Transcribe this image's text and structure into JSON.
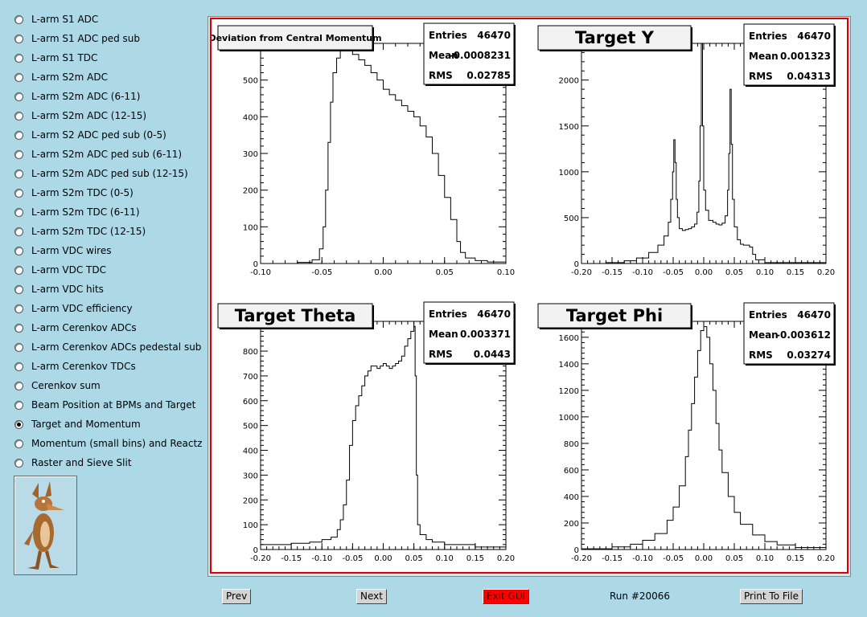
{
  "sidebar": {
    "items": [
      {
        "label": "L-arm S1 ADC",
        "checked": false
      },
      {
        "label": "L-arm S1 ADC ped sub",
        "checked": false
      },
      {
        "label": "L-arm S1 TDC",
        "checked": false
      },
      {
        "label": "L-arm S2m ADC",
        "checked": false
      },
      {
        "label": "L-arm S2m ADC (6-11)",
        "checked": false
      },
      {
        "label": "L-arm S2m ADC (12-15)",
        "checked": false
      },
      {
        "label": "L-arm S2 ADC ped sub (0-5)",
        "checked": false
      },
      {
        "label": "L-arm S2m ADC ped sub (6-11)",
        "checked": false
      },
      {
        "label": "L-arm S2m ADC ped sub (12-15)",
        "checked": false
      },
      {
        "label": "L-arm S2m TDC (0-5)",
        "checked": false
      },
      {
        "label": "L-arm S2m TDC (6-11)",
        "checked": false
      },
      {
        "label": "L-arm S2m TDC (12-15)",
        "checked": false
      },
      {
        "label": "L-arm VDC wires",
        "checked": false
      },
      {
        "label": "L-arm VDC TDC",
        "checked": false
      },
      {
        "label": "L-arm VDC hits",
        "checked": false
      },
      {
        "label": "L-arm VDC efficiency",
        "checked": false
      },
      {
        "label": "L-arm Cerenkov ADCs",
        "checked": false
      },
      {
        "label": "L-arm Cerenkov ADCs pedestal sub",
        "checked": false
      },
      {
        "label": "L-arm Cerenkov TDCs",
        "checked": false
      },
      {
        "label": "Cerenkov sum",
        "checked": false
      },
      {
        "label": "Beam Position at BPMs and Target",
        "checked": false
      },
      {
        "label": "Target and Momentum",
        "checked": true
      },
      {
        "label": "Momentum (small bins) and Reactz",
        "checked": false
      },
      {
        "label": "Raster and Sieve Slit",
        "checked": false
      }
    ]
  },
  "buttons": {
    "prev": "Prev",
    "next": "Next",
    "exit": "Exit GUI",
    "print": "Print To File"
  },
  "run_label": "Run #20066",
  "colors": {
    "background": "#add8e6",
    "canvas_border": "#dd0000",
    "exit_button": "#ff0000"
  },
  "chart_data": [
    {
      "type": "histogram",
      "title": "Deviation from Central Momentum",
      "stats": {
        "Entries": "46470",
        "Mean": "-0.0008231",
        "RMS": "0.02785"
      },
      "xlim": [
        -0.1,
        0.1
      ],
      "ylim": [
        0,
        600
      ],
      "xticks": [
        "-0.10",
        "-0.05",
        "0.00",
        "0.05",
        "0.10"
      ],
      "yticks": [
        "0",
        "100",
        "200",
        "300",
        "400",
        "500",
        "600"
      ],
      "points": [
        [
          -0.1,
          0
        ],
        [
          -0.07,
          3
        ],
        [
          -0.058,
          10
        ],
        [
          -0.052,
          40
        ],
        [
          -0.049,
          100
        ],
        [
          -0.047,
          200
        ],
        [
          -0.045,
          330
        ],
        [
          -0.043,
          440
        ],
        [
          -0.041,
          520
        ],
        [
          -0.038,
          560
        ],
        [
          -0.035,
          585
        ],
        [
          -0.032,
          600
        ],
        [
          -0.028,
          595
        ],
        [
          -0.025,
          570
        ],
        [
          -0.02,
          555
        ],
        [
          -0.015,
          540
        ],
        [
          -0.01,
          520
        ],
        [
          -0.005,
          500
        ],
        [
          0.0,
          475
        ],
        [
          0.005,
          460
        ],
        [
          0.01,
          445
        ],
        [
          0.015,
          430
        ],
        [
          0.02,
          415
        ],
        [
          0.025,
          400
        ],
        [
          0.03,
          375
        ],
        [
          0.035,
          345
        ],
        [
          0.04,
          300
        ],
        [
          0.045,
          240
        ],
        [
          0.05,
          180
        ],
        [
          0.055,
          120
        ],
        [
          0.06,
          60
        ],
        [
          0.063,
          30
        ],
        [
          0.067,
          15
        ],
        [
          0.075,
          8
        ],
        [
          0.085,
          4
        ],
        [
          0.1,
          2
        ]
      ]
    },
    {
      "type": "histogram",
      "title": "Target Y",
      "stats": {
        "Entries": "46470",
        "Mean": "0.001323",
        "RMS": "0.04313"
      },
      "xlim": [
        -0.2,
        0.2
      ],
      "ylim": [
        0,
        2400
      ],
      "xticks": [
        "-0.20",
        "-0.15",
        "-0.10",
        "-0.05",
        "0.00",
        "0.05",
        "0.10",
        "0.15",
        "0.20"
      ],
      "yticks": [
        "0",
        "500",
        "1000",
        "1500",
        "2000"
      ],
      "points": [
        [
          -0.2,
          0
        ],
        [
          -0.16,
          10
        ],
        [
          -0.13,
          30
        ],
        [
          -0.11,
          60
        ],
        [
          -0.09,
          120
        ],
        [
          -0.075,
          200
        ],
        [
          -0.065,
          300
        ],
        [
          -0.058,
          450
        ],
        [
          -0.054,
          700
        ],
        [
          -0.051,
          1000
        ],
        [
          -0.049,
          1350
        ],
        [
          -0.047,
          1100
        ],
        [
          -0.045,
          700
        ],
        [
          -0.043,
          500
        ],
        [
          -0.04,
          380
        ],
        [
          -0.035,
          360
        ],
        [
          -0.03,
          370
        ],
        [
          -0.025,
          380
        ],
        [
          -0.02,
          400
        ],
        [
          -0.015,
          430
        ],
        [
          -0.011,
          560
        ],
        [
          -0.008,
          900
        ],
        [
          -0.006,
          1500
        ],
        [
          -0.004,
          2400
        ],
        [
          -0.002,
          1500
        ],
        [
          0.0,
          800
        ],
        [
          0.003,
          580
        ],
        [
          0.008,
          470
        ],
        [
          0.015,
          450
        ],
        [
          0.02,
          430
        ],
        [
          0.025,
          420
        ],
        [
          0.03,
          440
        ],
        [
          0.035,
          520
        ],
        [
          0.039,
          800
        ],
        [
          0.041,
          1200
        ],
        [
          0.043,
          1900
        ],
        [
          0.045,
          1300
        ],
        [
          0.047,
          700
        ],
        [
          0.05,
          400
        ],
        [
          0.055,
          260
        ],
        [
          0.06,
          210
        ],
        [
          0.065,
          200
        ],
        [
          0.07,
          200
        ],
        [
          0.075,
          180
        ],
        [
          0.08,
          100
        ],
        [
          0.085,
          40
        ],
        [
          0.1,
          10
        ],
        [
          0.2,
          0
        ]
      ]
    },
    {
      "type": "histogram",
      "title": "Target Theta",
      "stats": {
        "Entries": "46470",
        "Mean": "0.003371",
        "RMS": "0.0443"
      },
      "xlim": [
        -0.2,
        0.2
      ],
      "ylim": [
        0,
        920
      ],
      "xticks": [
        "-0.20",
        "-0.15",
        "-0.10",
        "-0.05",
        "0.00",
        "0.05",
        "0.10",
        "0.15",
        "0.20"
      ],
      "yticks": [
        "0",
        "100",
        "200",
        "300",
        "400",
        "500",
        "600",
        "700",
        "800"
      ],
      "points": [
        [
          -0.2,
          20
        ],
        [
          -0.15,
          25
        ],
        [
          -0.12,
          30
        ],
        [
          -0.1,
          40
        ],
        [
          -0.085,
          50
        ],
        [
          -0.075,
          80
        ],
        [
          -0.07,
          120
        ],
        [
          -0.065,
          180
        ],
        [
          -0.06,
          280
        ],
        [
          -0.055,
          420
        ],
        [
          -0.05,
          520
        ],
        [
          -0.045,
          580
        ],
        [
          -0.04,
          620
        ],
        [
          -0.035,
          660
        ],
        [
          -0.03,
          700
        ],
        [
          -0.025,
          720
        ],
        [
          -0.02,
          740
        ],
        [
          -0.015,
          740
        ],
        [
          -0.01,
          730
        ],
        [
          -0.005,
          740
        ],
        [
          0.0,
          750
        ],
        [
          0.005,
          740
        ],
        [
          0.01,
          730
        ],
        [
          0.015,
          740
        ],
        [
          0.02,
          750
        ],
        [
          0.025,
          760
        ],
        [
          0.03,
          780
        ],
        [
          0.035,
          820
        ],
        [
          0.04,
          850
        ],
        [
          0.045,
          880
        ],
        [
          0.05,
          900
        ],
        [
          0.052,
          700
        ],
        [
          0.054,
          300
        ],
        [
          0.056,
          100
        ],
        [
          0.06,
          60
        ],
        [
          0.07,
          40
        ],
        [
          0.08,
          30
        ],
        [
          0.1,
          20
        ],
        [
          0.15,
          10
        ],
        [
          0.2,
          5
        ]
      ]
    },
    {
      "type": "histogram",
      "title": "Target Phi",
      "stats": {
        "Entries": "46470",
        "Mean": "-0.003612",
        "RMS": "0.03274"
      },
      "xlim": [
        -0.2,
        0.2
      ],
      "ylim": [
        0,
        1720
      ],
      "xticks": [
        "-0.20",
        "-0.15",
        "-0.10",
        "-0.05",
        "0.00",
        "0.05",
        "0.10",
        "0.15",
        "0.20"
      ],
      "yticks": [
        "0",
        "200",
        "400",
        "600",
        "800",
        "1000",
        "1200",
        "1400",
        "1600"
      ],
      "points": [
        [
          -0.2,
          5
        ],
        [
          -0.15,
          20
        ],
        [
          -0.12,
          40
        ],
        [
          -0.1,
          70
        ],
        [
          -0.08,
          120
        ],
        [
          -0.06,
          220
        ],
        [
          -0.05,
          320
        ],
        [
          -0.04,
          480
        ],
        [
          -0.03,
          700
        ],
        [
          -0.025,
          900
        ],
        [
          -0.02,
          1100
        ],
        [
          -0.015,
          1300
        ],
        [
          -0.01,
          1500
        ],
        [
          -0.005,
          1650
        ],
        [
          0.0,
          1680
        ],
        [
          0.005,
          1600
        ],
        [
          0.01,
          1400
        ],
        [
          0.015,
          1200
        ],
        [
          0.02,
          950
        ],
        [
          0.025,
          750
        ],
        [
          0.03,
          580
        ],
        [
          0.04,
          400
        ],
        [
          0.05,
          280
        ],
        [
          0.06,
          190
        ],
        [
          0.08,
          110
        ],
        [
          0.1,
          60
        ],
        [
          0.12,
          35
        ],
        [
          0.15,
          15
        ],
        [
          0.2,
          5
        ]
      ]
    }
  ]
}
